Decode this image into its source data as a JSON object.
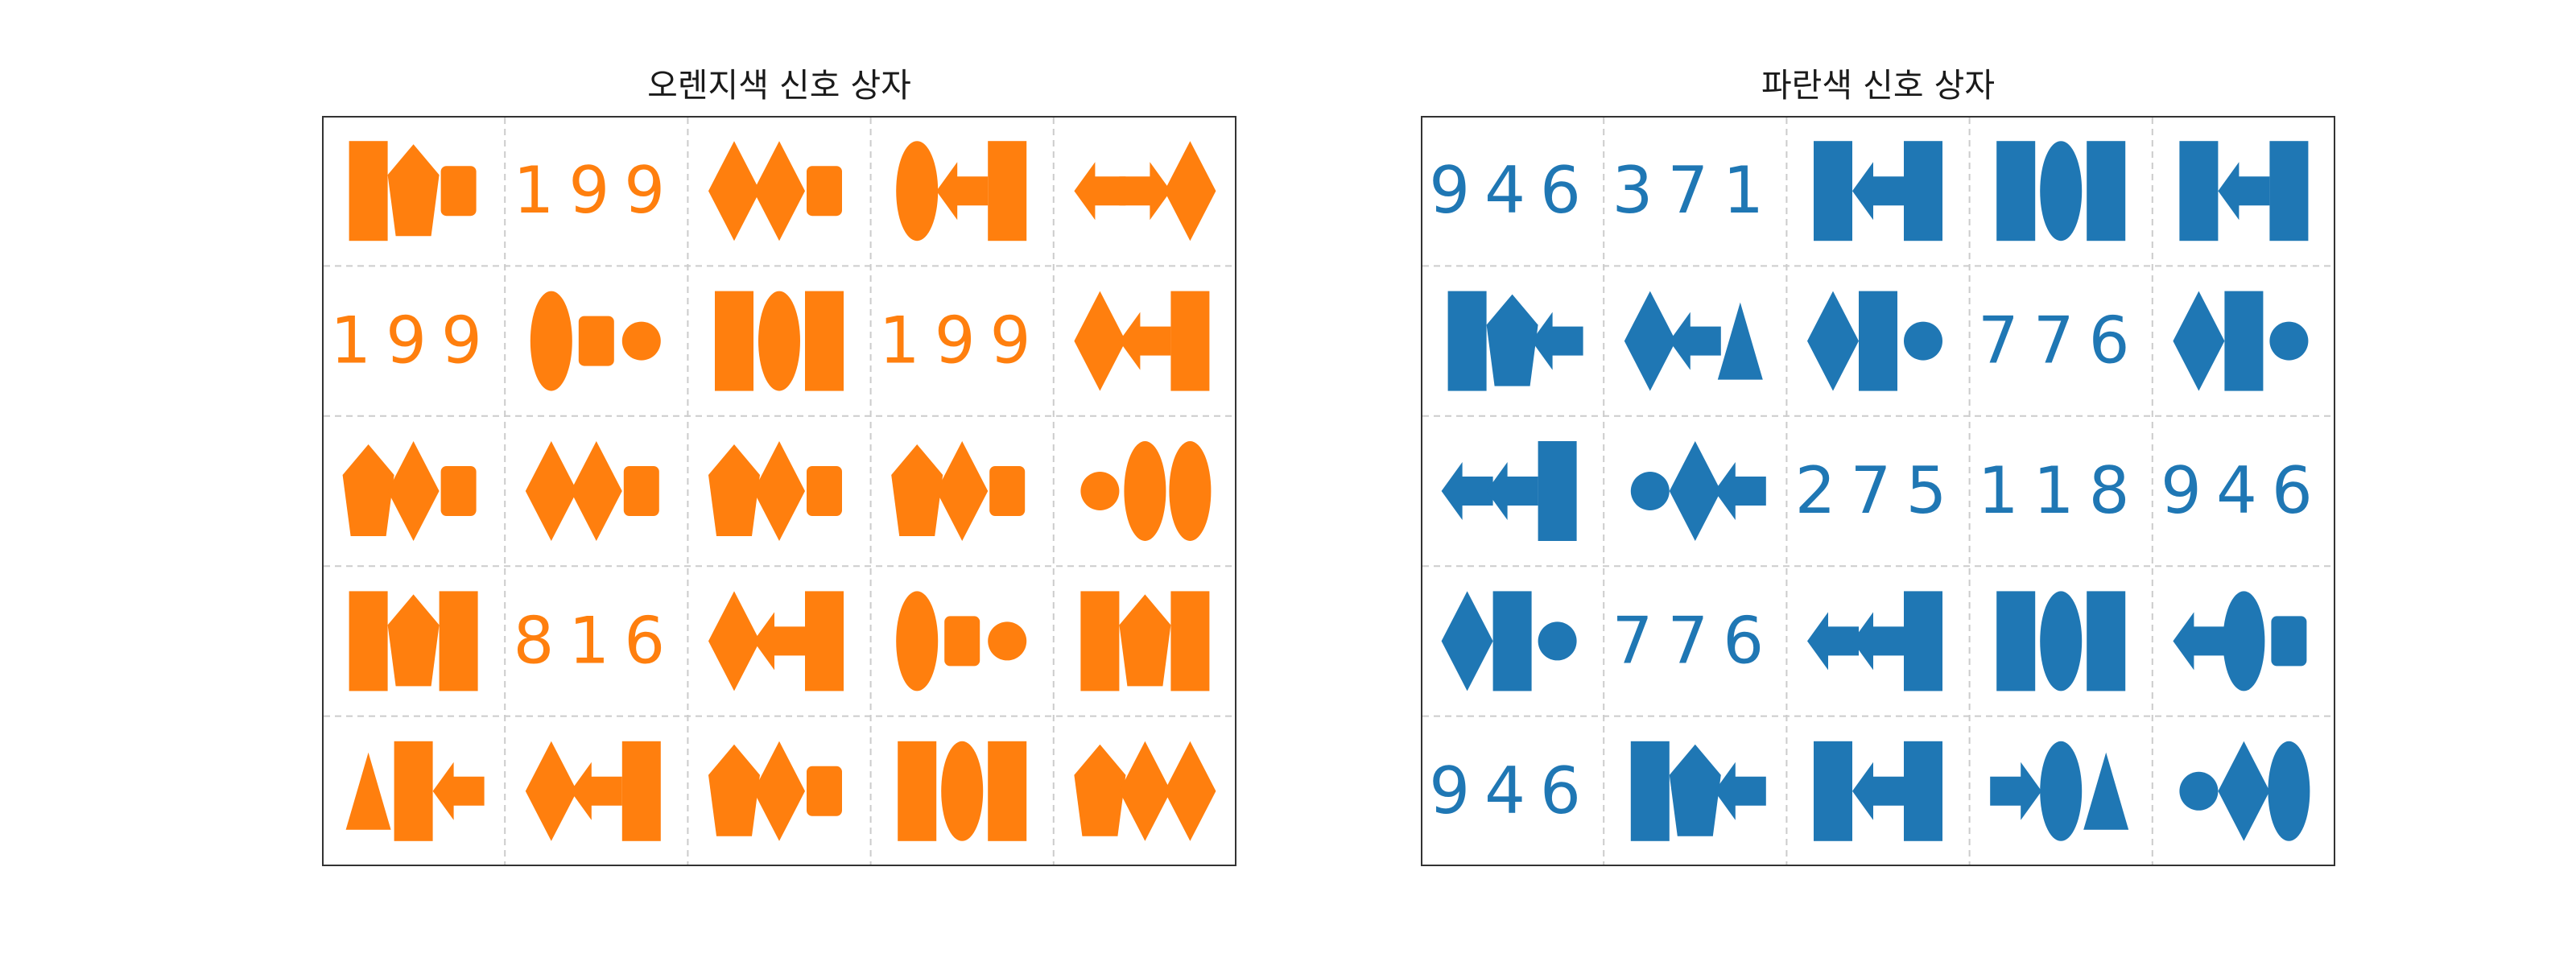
{
  "panels": [
    {
      "title": "오렌지색 신호 상자",
      "color": "#ff7f0e",
      "rows": [
        [
          {
            "kind": "shapes",
            "items": [
              "rect",
              "pentagon",
              "rounded-rect"
            ]
          },
          {
            "kind": "number",
            "text": "199"
          },
          {
            "kind": "shapes",
            "items": [
              "diamond",
              "diamond",
              "rounded-rect"
            ]
          },
          {
            "kind": "shapes",
            "items": [
              "ellipse",
              "arrow-left",
              "rect"
            ]
          },
          {
            "kind": "shapes",
            "items": [
              "arrow-left",
              "arrow-right",
              "diamond"
            ]
          }
        ],
        [
          {
            "kind": "number",
            "text": "199"
          },
          {
            "kind": "shapes",
            "items": [
              "ellipse",
              "rounded-rect",
              "circle"
            ]
          },
          {
            "kind": "shapes",
            "items": [
              "rect",
              "ellipse",
              "rect"
            ]
          },
          {
            "kind": "number",
            "text": "199"
          },
          {
            "kind": "shapes",
            "items": [
              "diamond",
              "arrow-left",
              "rect"
            ]
          }
        ],
        [
          {
            "kind": "shapes",
            "items": [
              "pentagon",
              "diamond",
              "rounded-rect"
            ]
          },
          {
            "kind": "shapes",
            "items": [
              "diamond",
              "diamond",
              "rounded-rect"
            ]
          },
          {
            "kind": "shapes",
            "items": [
              "pentagon",
              "diamond",
              "rounded-rect"
            ]
          },
          {
            "kind": "shapes",
            "items": [
              "pentagon",
              "diamond",
              "rounded-rect"
            ]
          },
          {
            "kind": "shapes",
            "items": [
              "circle",
              "ellipse",
              "ellipse"
            ]
          }
        ],
        [
          {
            "kind": "shapes",
            "items": [
              "rect",
              "pentagon",
              "rect"
            ]
          },
          {
            "kind": "number",
            "text": "816"
          },
          {
            "kind": "shapes",
            "items": [
              "diamond",
              "arrow-left",
              "rect"
            ]
          },
          {
            "kind": "shapes",
            "items": [
              "ellipse",
              "rounded-rect",
              "circle"
            ]
          },
          {
            "kind": "shapes",
            "items": [
              "rect",
              "pentagon",
              "rect"
            ]
          }
        ],
        [
          {
            "kind": "shapes",
            "items": [
              "triangle",
              "rect",
              "arrow-left"
            ]
          },
          {
            "kind": "shapes",
            "items": [
              "diamond",
              "arrow-left",
              "rect"
            ]
          },
          {
            "kind": "shapes",
            "items": [
              "pentagon",
              "diamond",
              "rounded-rect"
            ]
          },
          {
            "kind": "shapes",
            "items": [
              "rect",
              "ellipse",
              "rect"
            ]
          },
          {
            "kind": "shapes",
            "items": [
              "pentagon",
              "diamond",
              "diamond"
            ]
          }
        ]
      ]
    },
    {
      "title": "파란색 신호 상자",
      "color": "#1f77b4",
      "rows": [
        [
          {
            "kind": "number",
            "text": "946"
          },
          {
            "kind": "number",
            "text": "371"
          },
          {
            "kind": "shapes",
            "items": [
              "rect",
              "arrow-left",
              "rect"
            ]
          },
          {
            "kind": "shapes",
            "items": [
              "rect",
              "ellipse",
              "rect"
            ]
          },
          {
            "kind": "shapes",
            "items": [
              "rect",
              "arrow-left",
              "rect"
            ]
          }
        ],
        [
          {
            "kind": "shapes",
            "items": [
              "rect",
              "pentagon",
              "arrow-left"
            ]
          },
          {
            "kind": "shapes",
            "items": [
              "diamond",
              "arrow-left",
              "triangle"
            ]
          },
          {
            "kind": "shapes",
            "items": [
              "diamond",
              "rect",
              "circle"
            ]
          },
          {
            "kind": "number",
            "text": "776"
          },
          {
            "kind": "shapes",
            "items": [
              "diamond",
              "rect",
              "circle"
            ]
          }
        ],
        [
          {
            "kind": "shapes",
            "items": [
              "arrow-left",
              "arrow-left",
              "rect"
            ]
          },
          {
            "kind": "shapes",
            "items": [
              "circle",
              "diamond",
              "arrow-left"
            ]
          },
          {
            "kind": "number",
            "text": "275"
          },
          {
            "kind": "number",
            "text": "118"
          },
          {
            "kind": "number",
            "text": "946"
          }
        ],
        [
          {
            "kind": "shapes",
            "items": [
              "diamond",
              "rect",
              "circle"
            ]
          },
          {
            "kind": "number",
            "text": "776"
          },
          {
            "kind": "shapes",
            "items": [
              "arrow-left",
              "arrow-left",
              "rect"
            ]
          },
          {
            "kind": "shapes",
            "items": [
              "rect",
              "ellipse",
              "rect"
            ]
          },
          {
            "kind": "shapes",
            "items": [
              "arrow-left",
              "ellipse",
              "rounded-rect"
            ]
          }
        ],
        [
          {
            "kind": "number",
            "text": "946"
          },
          {
            "kind": "shapes",
            "items": [
              "rect",
              "pentagon",
              "arrow-left"
            ]
          },
          {
            "kind": "shapes",
            "items": [
              "rect",
              "arrow-left",
              "rect"
            ]
          },
          {
            "kind": "shapes",
            "items": [
              "arrow-right",
              "ellipse",
              "triangle"
            ]
          },
          {
            "kind": "shapes",
            "items": [
              "circle",
              "diamond",
              "ellipse"
            ]
          }
        ]
      ]
    }
  ]
}
